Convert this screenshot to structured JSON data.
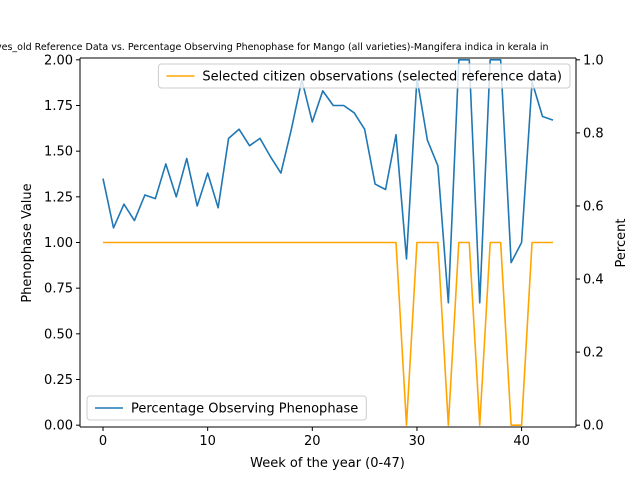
{
  "chart_data": {
    "type": "line",
    "title": "ves_old Reference Data vs. Percentage Observing Phenophase for Mango (all varieties)-Mangifera indica in kerala in",
    "xlabel": "Week of the year (0-47)",
    "ylabel_left": "Phenophase Value",
    "ylabel_right": "Percent",
    "xlim": [
      -2.2,
      45.2
    ],
    "ylim_left": [
      -0.01,
      2.01
    ],
    "ylim_right": [
      -0.005,
      1.005
    ],
    "x_ticks": [
      0,
      10,
      20,
      30,
      40
    ],
    "x_tick_labels": [
      "0",
      "10",
      "20",
      "30",
      "40"
    ],
    "y_left_ticks": [
      0,
      0.25,
      0.5,
      0.75,
      1.0,
      1.25,
      1.5,
      1.75,
      2.0
    ],
    "y_left_tick_labels": [
      "0.00",
      "0.25",
      "0.50",
      "0.75",
      "1.00",
      "1.25",
      "1.50",
      "1.75",
      "2.00"
    ],
    "y_right_ticks": [
      0,
      0.2,
      0.4,
      0.6,
      0.8,
      1.0
    ],
    "y_right_tick_labels": [
      "0.0",
      "0.2",
      "0.4",
      "0.6",
      "0.8",
      "1.0"
    ],
    "grid": false,
    "series": [
      {
        "name": "Percentage Observing Phenophase",
        "axis": "left",
        "color": "#1f77b4",
        "legend_position": "lower-left",
        "points": [
          [
            0,
            1.35
          ],
          [
            1,
            1.08
          ],
          [
            2,
            1.21
          ],
          [
            3,
            1.12
          ],
          [
            4,
            1.26
          ],
          [
            5,
            1.24
          ],
          [
            6,
            1.43
          ],
          [
            7,
            1.25
          ],
          [
            8,
            1.46
          ],
          [
            9,
            1.2
          ],
          [
            10,
            1.38
          ],
          [
            11,
            1.19
          ],
          [
            12,
            1.57
          ],
          [
            13,
            1.62
          ],
          [
            14,
            1.53
          ],
          [
            15,
            1.57
          ],
          [
            16,
            1.47
          ],
          [
            17,
            1.38
          ],
          [
            18,
            1.62
          ],
          [
            19,
            1.89
          ],
          [
            20,
            1.66
          ],
          [
            21,
            1.83
          ],
          [
            22,
            1.75
          ],
          [
            23,
            1.75
          ],
          [
            24,
            1.71
          ],
          [
            25,
            1.62
          ],
          [
            26,
            1.32
          ],
          [
            27,
            1.29
          ],
          [
            28,
            1.59
          ],
          [
            29,
            0.91
          ],
          [
            30,
            1.9
          ],
          [
            31,
            1.56
          ],
          [
            32,
            1.42
          ],
          [
            33,
            0.67
          ],
          [
            34,
            2.0
          ],
          [
            35,
            2.0
          ],
          [
            36,
            0.67
          ],
          [
            37,
            2.0
          ],
          [
            38,
            2.0
          ],
          [
            39,
            0.89
          ],
          [
            40,
            1.0
          ],
          [
            41,
            1.88
          ],
          [
            42,
            1.69
          ],
          [
            43,
            1.67
          ]
        ]
      },
      {
        "name": "Selected citizen observations (selected reference data)",
        "axis": "right",
        "color": "#ffa500",
        "legend_position": "upper-right",
        "points": [
          [
            0,
            0.5
          ],
          [
            28,
            0.5
          ],
          [
            29,
            0
          ],
          [
            30,
            0.5
          ],
          [
            32,
            0.5
          ],
          [
            33,
            0
          ],
          [
            34,
            0.5
          ],
          [
            35,
            0.5
          ],
          [
            36,
            0
          ],
          [
            37,
            0.5
          ],
          [
            38,
            0.5
          ],
          [
            39,
            0
          ],
          [
            40,
            0
          ],
          [
            41,
            0.5
          ],
          [
            43,
            0.5
          ]
        ]
      }
    ]
  }
}
